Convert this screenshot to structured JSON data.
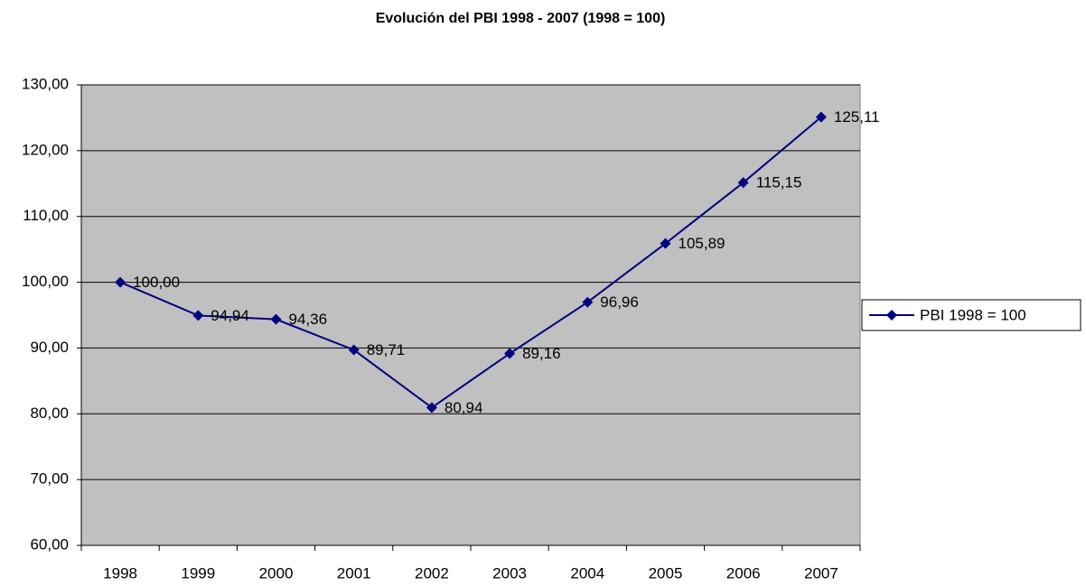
{
  "chart_data": {
    "type": "line",
    "title": "Evolución del PBI 1998 - 2007 (1998 = 100)",
    "categories": [
      "1998",
      "1999",
      "2000",
      "2001",
      "2002",
      "2003",
      "2004",
      "2005",
      "2006",
      "2007"
    ],
    "series": [
      {
        "name": "PBI 1998 = 100",
        "color": "#000080",
        "values": [
          100.0,
          94.94,
          94.36,
          89.71,
          80.94,
          89.16,
          96.96,
          105.89,
          115.15,
          125.11
        ],
        "value_labels": [
          "100,00",
          "94,94",
          "94,36",
          "89,71",
          "80,94",
          "89,16",
          "96,96",
          "105,89",
          "115,15",
          "125,11"
        ]
      }
    ],
    "ylim": [
      60,
      130
    ],
    "yticks": [
      {
        "value": 60,
        "label": "60,00"
      },
      {
        "value": 70,
        "label": "70,00"
      },
      {
        "value": 80,
        "label": "80,00"
      },
      {
        "value": 90,
        "label": "90,00"
      },
      {
        "value": 100,
        "label": "100,00"
      },
      {
        "value": 110,
        "label": "110,00"
      },
      {
        "value": 120,
        "label": "120,00"
      },
      {
        "value": 130,
        "label": "130,00"
      }
    ],
    "grid": true,
    "plot_background": "#c0c0c0",
    "legend": "right"
  }
}
